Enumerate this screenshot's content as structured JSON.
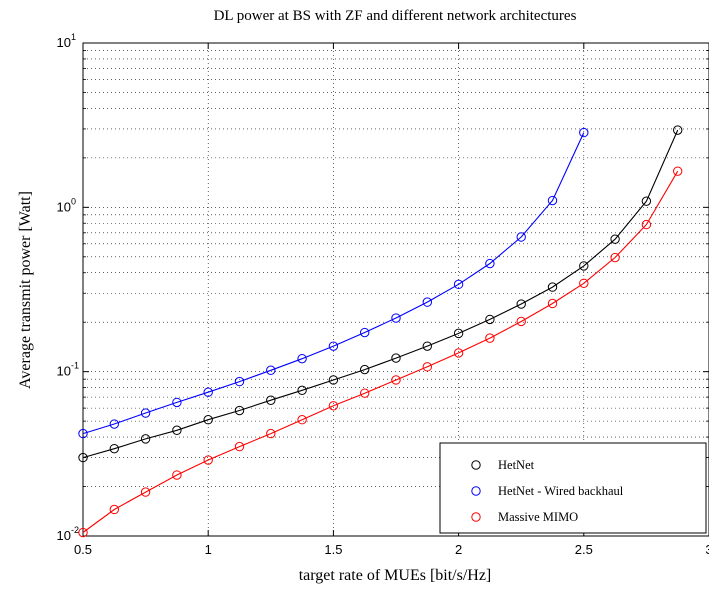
{
  "chart_data": {
    "type": "line",
    "title": "DL power at BS with ZF and different network architectures",
    "xlabel": "target rate of MUEs [bit/s/Hz]",
    "ylabel": "Average transmit power [Watt]",
    "xlim": [
      0.5,
      3
    ],
    "ylim": [
      0.01,
      10
    ],
    "yscale": "log",
    "grid": true,
    "legend_position": "bottom-right",
    "x_ticks": [
      0.5,
      1,
      1.5,
      2,
      2.5,
      3
    ],
    "x_tick_labels": [
      "0.5",
      "1",
      "1.5",
      "2",
      "2.5",
      "3"
    ],
    "y_ticks": [
      0.01,
      0.1,
      1,
      10
    ],
    "y_tick_bases": [
      "10",
      "10",
      "10",
      "10"
    ],
    "y_tick_exponents": [
      "-2",
      "-1",
      "0",
      "1"
    ],
    "series": [
      {
        "name": "HetNet",
        "color": "#000000",
        "marker": "circle",
        "x": [
          0.5,
          0.625,
          0.75,
          0.875,
          1.0,
          1.125,
          1.25,
          1.375,
          1.5,
          1.625,
          1.75,
          1.875,
          2.0,
          2.125,
          2.25,
          2.375,
          2.5,
          2.625,
          2.75,
          2.875
        ],
        "values": [
          0.03,
          0.034,
          0.039,
          0.044,
          0.051,
          0.058,
          0.067,
          0.077,
          0.089,
          0.103,
          0.121,
          0.143,
          0.171,
          0.208,
          0.258,
          0.327,
          0.44,
          0.64,
          1.09,
          2.95
        ]
      },
      {
        "name": "HetNet - Wired backhaul",
        "color": "#0000ff",
        "marker": "circle",
        "x": [
          0.5,
          0.625,
          0.75,
          0.875,
          1.0,
          1.125,
          1.25,
          1.375,
          1.5,
          1.625,
          1.75,
          1.875,
          2.0,
          2.125,
          2.25,
          2.375,
          2.5
        ],
        "values": [
          0.042,
          0.048,
          0.056,
          0.065,
          0.075,
          0.087,
          0.102,
          0.12,
          0.143,
          0.173,
          0.212,
          0.265,
          0.34,
          0.455,
          0.66,
          1.1,
          2.85
        ]
      },
      {
        "name": "Massive MIMO",
        "color": "#ff0000",
        "marker": "circle",
        "x": [
          0.5,
          0.625,
          0.75,
          0.875,
          1.0,
          1.125,
          1.25,
          1.375,
          1.5,
          1.625,
          1.75,
          1.875,
          2.0,
          2.125,
          2.25,
          2.375,
          2.5,
          2.625,
          2.75,
          2.875
        ],
        "values": [
          0.0105,
          0.0145,
          0.0185,
          0.0235,
          0.029,
          0.035,
          0.042,
          0.051,
          0.062,
          0.074,
          0.089,
          0.107,
          0.13,
          0.16,
          0.202,
          0.26,
          0.345,
          0.495,
          0.785,
          1.66
        ]
      }
    ]
  }
}
